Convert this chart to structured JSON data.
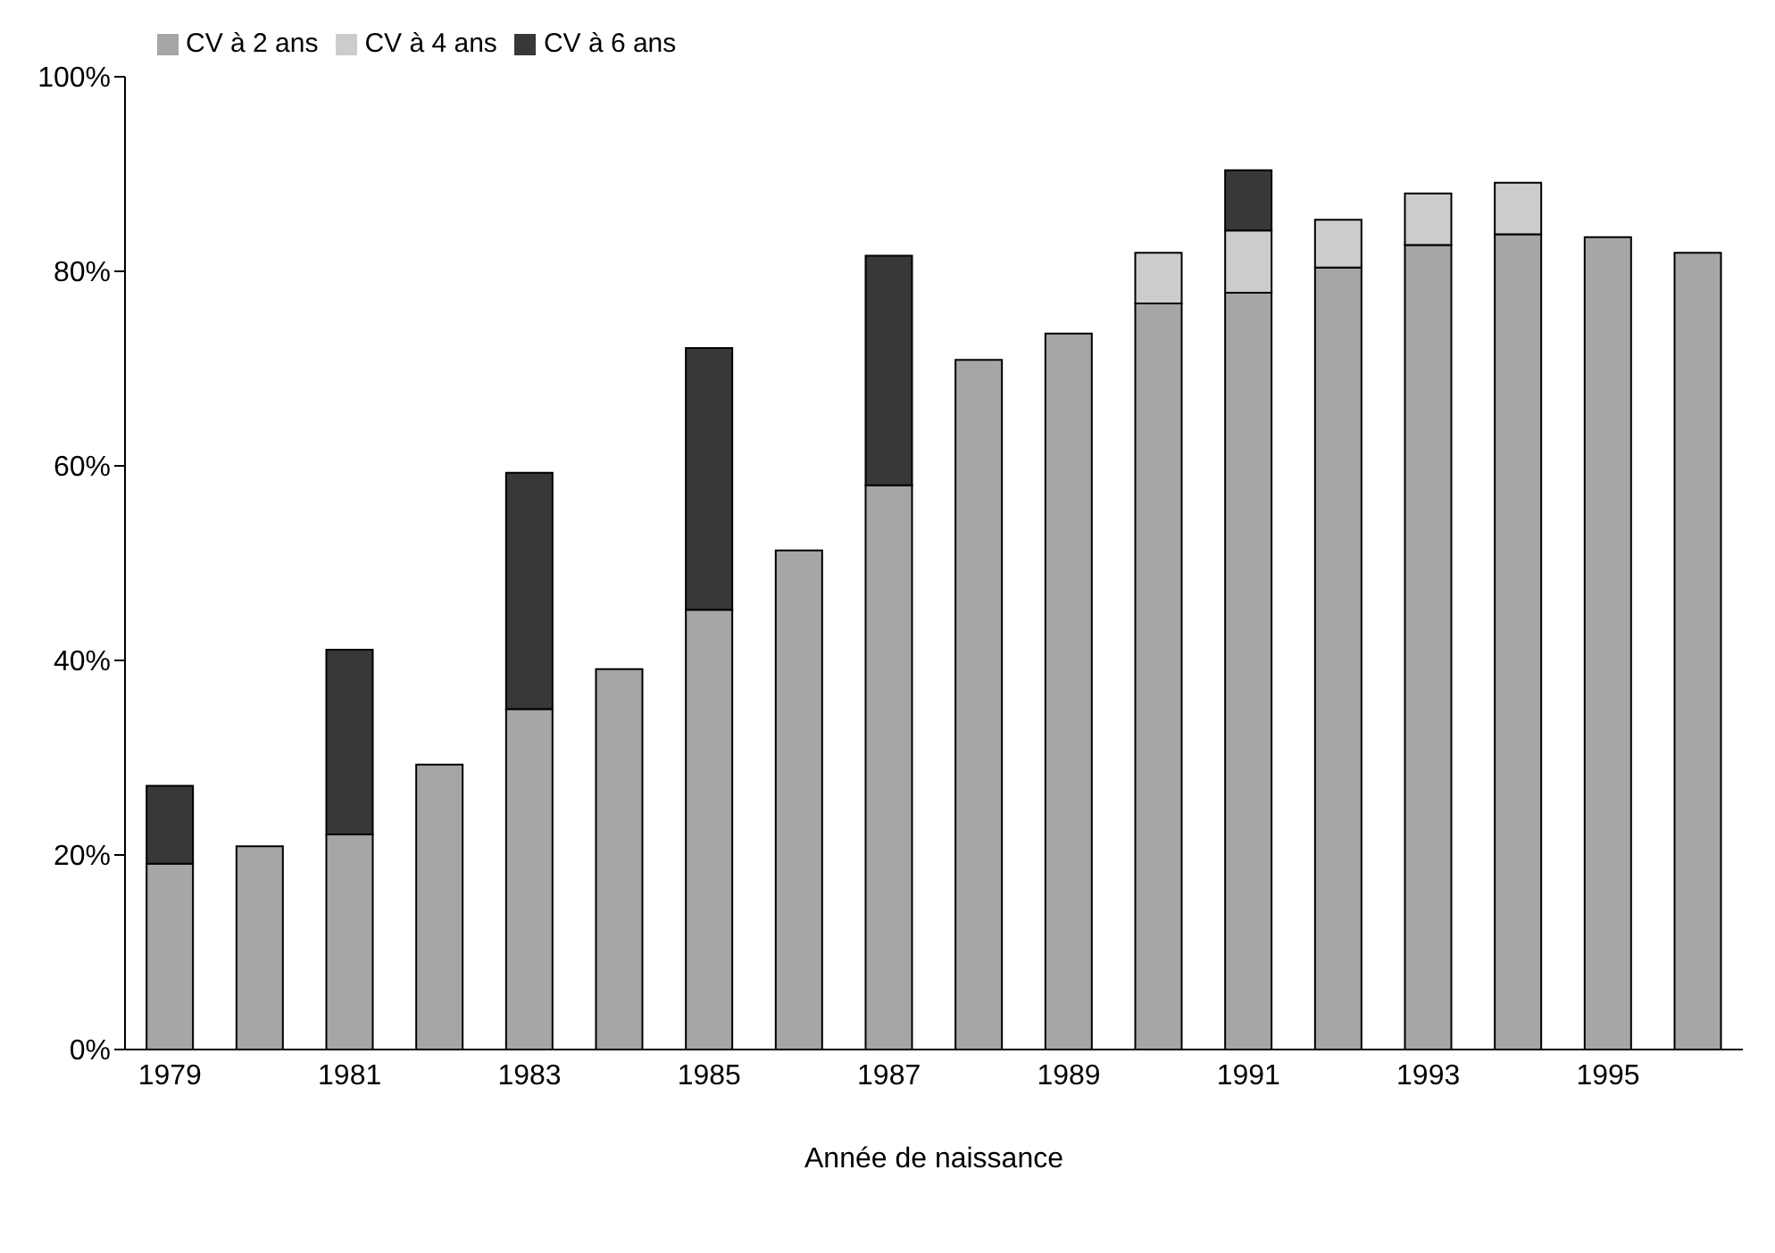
{
  "chart_data": {
    "type": "bar",
    "stacked": true,
    "xlabel": "Année de naissance",
    "categories": [
      "1979",
      null,
      "1981",
      null,
      "1983",
      null,
      "1985",
      null,
      "1987",
      null,
      "1989",
      null,
      "1991",
      null,
      "1993",
      null,
      "1995",
      null
    ],
    "series": [
      {
        "name": "CV à 2 ans",
        "color": "#a6a6a6",
        "values": [
          19.1,
          20.9,
          22.1,
          29.3,
          35.0,
          39.1,
          45.2,
          51.3,
          58.0,
          70.9,
          73.6,
          76.7,
          77.8,
          80.4,
          82.7,
          83.8,
          83.5,
          81.9
        ]
      },
      {
        "name": "CV à 4 ans",
        "color": "#cccccc",
        "values": [
          null,
          null,
          null,
          null,
          null,
          null,
          null,
          null,
          null,
          null,
          null,
          5.2,
          6.4,
          4.9,
          5.3,
          5.3,
          null,
          null
        ]
      },
      {
        "name": "CV à 6 ans",
        "color": "#383838",
        "values": [
          8.0,
          null,
          19.0,
          null,
          24.3,
          null,
          26.9,
          null,
          23.6,
          null,
          null,
          null,
          6.2,
          null,
          null,
          null,
          null,
          null
        ]
      }
    ],
    "ylim": [
      0,
      100
    ],
    "yticks": [
      {
        "value": 0,
        "label": "0%"
      },
      {
        "value": 20,
        "label": "20%"
      },
      {
        "value": 40,
        "label": "40%"
      },
      {
        "value": 60,
        "label": "60%"
      },
      {
        "value": 80,
        "label": "80%"
      },
      {
        "value": 100,
        "label": "100%"
      }
    ],
    "grid": false,
    "legend": "top left"
  }
}
